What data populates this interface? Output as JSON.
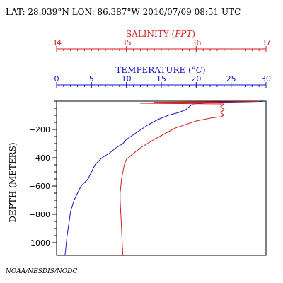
{
  "header": {
    "position_line": "LAT: 28.039°N LON: 86.387°W 2010/07/09 08:51 UTC"
  },
  "credit": "NOAA/NESDIS/NODC",
  "colors": {
    "salinity": "#d81e1e",
    "temperature": "#1515c8",
    "frame": "#000000"
  },
  "chart_data": {
    "type": "line",
    "title": "",
    "ylabel": "DEPTH (METERS)",
    "ylim": [
      -1090,
      0
    ],
    "yticks": [
      -1000,
      -800,
      -600,
      -400,
      -200
    ],
    "ytick_labels": [
      "−1000",
      "−800",
      "−600",
      "−400",
      "−200"
    ],
    "axes": {
      "salinity": {
        "label_prefix": "SALINITY (",
        "label_unit": "PPT",
        "label_suffix": ")",
        "range": [
          34,
          37
        ],
        "ticks": [
          34,
          35,
          36,
          37
        ],
        "tick_labels": [
          "34",
          "35",
          "36",
          "37"
        ]
      },
      "temperature": {
        "label_prefix": "TEMPERATURE (",
        "label_unit": "°C",
        "label_suffix": ")",
        "range": [
          0,
          30
        ],
        "ticks": [
          0,
          5,
          10,
          15,
          20,
          25,
          30
        ],
        "tick_labels": [
          "0",
          "5",
          "10",
          "15",
          "20",
          "25",
          "30"
        ]
      }
    },
    "series": [
      {
        "id": "temperature",
        "axis": "temperature",
        "points": [
          [
            29.6,
            -2
          ],
          [
            27,
            -5
          ],
          [
            24,
            -8
          ],
          [
            21.5,
            -12
          ],
          [
            19.5,
            -20
          ],
          [
            19,
            -40
          ],
          [
            18.5,
            -60
          ],
          [
            17.5,
            -80
          ],
          [
            16,
            -100
          ],
          [
            14.5,
            -130
          ],
          [
            13,
            -170
          ],
          [
            11.5,
            -220
          ],
          [
            10,
            -270
          ],
          [
            9.5,
            -300
          ],
          [
            8.5,
            -330
          ],
          [
            7.5,
            -370
          ],
          [
            6.5,
            -400
          ],
          [
            5.5,
            -450
          ],
          [
            5,
            -500
          ],
          [
            4.5,
            -550
          ],
          [
            3.5,
            -600
          ],
          [
            3,
            -650
          ],
          [
            2.5,
            -700
          ],
          [
            2,
            -780
          ],
          [
            1.8,
            -850
          ],
          [
            1.5,
            -950
          ],
          [
            1.3,
            -1050
          ],
          [
            1.2,
            -1090
          ]
        ]
      },
      {
        "id": "salinity",
        "axis": "salinity",
        "points": [
          [
            36.9,
            -2
          ],
          [
            36.8,
            -3
          ],
          [
            35.4,
            -8
          ],
          [
            36.3,
            -10
          ],
          [
            35.2,
            -15
          ],
          [
            36.4,
            -20
          ],
          [
            36.35,
            -40
          ],
          [
            36.4,
            -60
          ],
          [
            36.35,
            -80
          ],
          [
            36.4,
            -100
          ],
          [
            36.35,
            -110
          ],
          [
            36.2,
            -120
          ],
          [
            36.0,
            -140
          ],
          [
            35.85,
            -165
          ],
          [
            35.7,
            -190
          ],
          [
            35.55,
            -230
          ],
          [
            35.4,
            -270
          ],
          [
            35.3,
            -300
          ],
          [
            35.2,
            -330
          ],
          [
            35.1,
            -370
          ],
          [
            35.0,
            -410
          ],
          [
            34.97,
            -450
          ],
          [
            34.95,
            -500
          ],
          [
            34.93,
            -550
          ],
          [
            34.92,
            -600
          ],
          [
            34.91,
            -650
          ],
          [
            34.91,
            -700
          ],
          [
            34.92,
            -800
          ],
          [
            34.93,
            -900
          ],
          [
            34.94,
            -1000
          ],
          [
            34.95,
            -1090
          ]
        ]
      }
    ]
  }
}
